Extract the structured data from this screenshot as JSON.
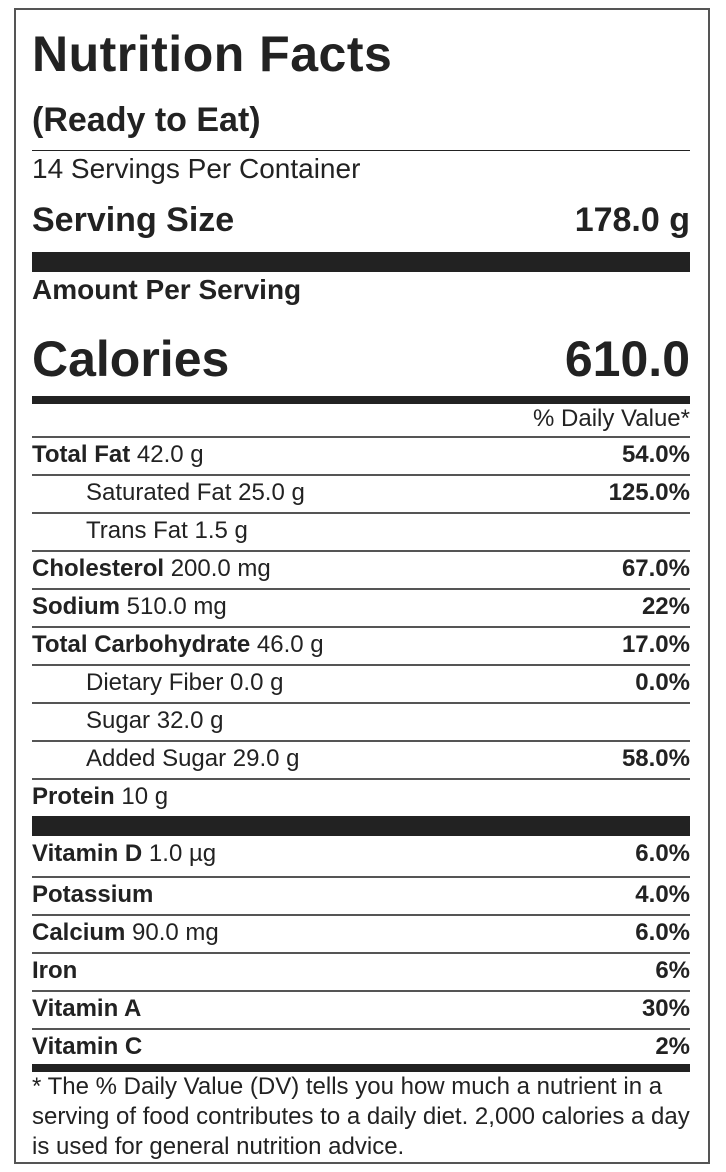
{
  "title": "Nutrition Facts",
  "subtitle": "(Ready to Eat)",
  "servings_per_container": "14 Servings Per Container",
  "serving_size": {
    "label": "Serving Size",
    "value": "178.0 g"
  },
  "amount_per_serving": "Amount Per Serving",
  "calories": {
    "label": "Calories",
    "value": "610.0"
  },
  "daily_value_header": "% Daily Value*",
  "nutrients": [
    {
      "name": "Total Fat",
      "amount": "42.0 g",
      "dv": "54.0%"
    },
    {
      "name": "Saturated Fat",
      "amount": "25.0 g",
      "dv": "125.0%"
    },
    {
      "name": "Trans Fat",
      "amount": "1.5 g",
      "dv": ""
    },
    {
      "name": "Cholesterol",
      "amount": "200.0 mg",
      "dv": "67.0%"
    },
    {
      "name": "Sodium",
      "amount": "510.0 mg",
      "dv": "22%"
    },
    {
      "name": "Total Carbohydrate",
      "amount": "46.0 g",
      "dv": "17.0%"
    },
    {
      "name": "Dietary Fiber",
      "amount": "0.0 g",
      "dv": "0.0%"
    },
    {
      "name": "Sugar",
      "amount": "32.0 g",
      "dv": ""
    },
    {
      "name": "Added Sugar",
      "amount": "29.0 g",
      "dv": "58.0%"
    },
    {
      "name": "Protein",
      "amount": "10 g",
      "dv": ""
    }
  ],
  "vitamins": [
    {
      "name": "Vitamin D",
      "amount": "1.0 µg",
      "dv": "6.0%"
    },
    {
      "name": "Potassium",
      "amount": "",
      "dv": "4.0%"
    },
    {
      "name": "Calcium",
      "amount": "90.0 mg",
      "dv": "6.0%"
    },
    {
      "name": "Iron",
      "amount": "",
      "dv": "6%"
    },
    {
      "name": "Vitamin A",
      "amount": "",
      "dv": "30%"
    },
    {
      "name": "Vitamin C",
      "amount": "",
      "dv": "2%"
    }
  ],
  "footnote": "* The % Daily Value (DV) tells you how much a nutrient in a serving of food contributes to a daily diet. 2,000 calories a day is used for general nutrition advice."
}
